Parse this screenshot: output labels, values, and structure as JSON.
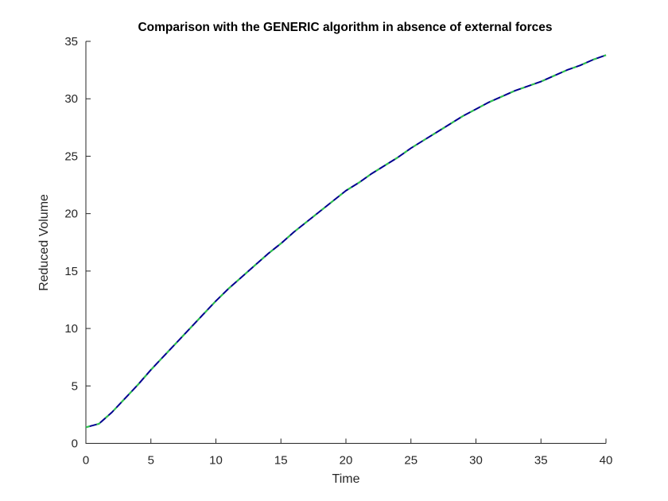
{
  "figure": {
    "background_color": "#ffffff"
  },
  "chart_data": {
    "type": "line",
    "title": "Comparison with the GENERIC algorithm in absence of external forces",
    "xlabel": "Time",
    "ylabel": "Reduced Volume",
    "xlim": [
      0,
      40
    ],
    "ylim": [
      0,
      35
    ],
    "xticks": [
      0,
      5,
      10,
      15,
      20,
      25,
      30,
      35,
      40
    ],
    "yticks": [
      0,
      5,
      10,
      15,
      20,
      25,
      30,
      35
    ],
    "grid": false,
    "legend": "none",
    "axis_color": "#262626",
    "x": [
      0,
      1,
      2,
      3,
      4,
      5,
      6,
      7,
      8,
      9,
      10,
      11,
      12,
      13,
      14,
      15,
      16,
      17,
      18,
      19,
      20,
      21,
      22,
      23,
      24,
      25,
      26,
      27,
      28,
      29,
      30,
      31,
      32,
      33,
      34,
      35,
      36,
      37,
      38,
      39,
      40
    ],
    "series": [
      {
        "name": "solid-navy-curve",
        "color": "#00008f",
        "style": "solid",
        "line_width": 2,
        "values": [
          1.4,
          1.7,
          2.7,
          3.9,
          5.1,
          6.4,
          7.6,
          8.8,
          10.0,
          11.2,
          12.4,
          13.5,
          14.5,
          15.5,
          16.5,
          17.4,
          18.4,
          19.3,
          20.2,
          21.1,
          22.0,
          22.7,
          23.5,
          24.2,
          24.9,
          25.7,
          26.4,
          27.1,
          27.8,
          28.5,
          29.1,
          29.7,
          30.2,
          30.7,
          31.1,
          31.5,
          32.0,
          32.5,
          32.9,
          33.4,
          33.8
        ]
      },
      {
        "name": "dashed-green-curve-overlapping",
        "color": "#2dc847",
        "style": "dashed",
        "line_width": 2,
        "values": [
          1.4,
          1.7,
          2.7,
          3.9,
          5.1,
          6.4,
          7.6,
          8.8,
          10.0,
          11.2,
          12.4,
          13.5,
          14.5,
          15.5,
          16.5,
          17.4,
          18.4,
          19.3,
          20.2,
          21.1,
          22.0,
          22.7,
          23.5,
          24.2,
          24.9,
          25.7,
          26.4,
          27.1,
          27.8,
          28.5,
          29.1,
          29.7,
          30.2,
          30.7,
          31.1,
          31.5,
          32.0,
          32.5,
          32.9,
          33.4,
          33.8
        ]
      }
    ]
  }
}
